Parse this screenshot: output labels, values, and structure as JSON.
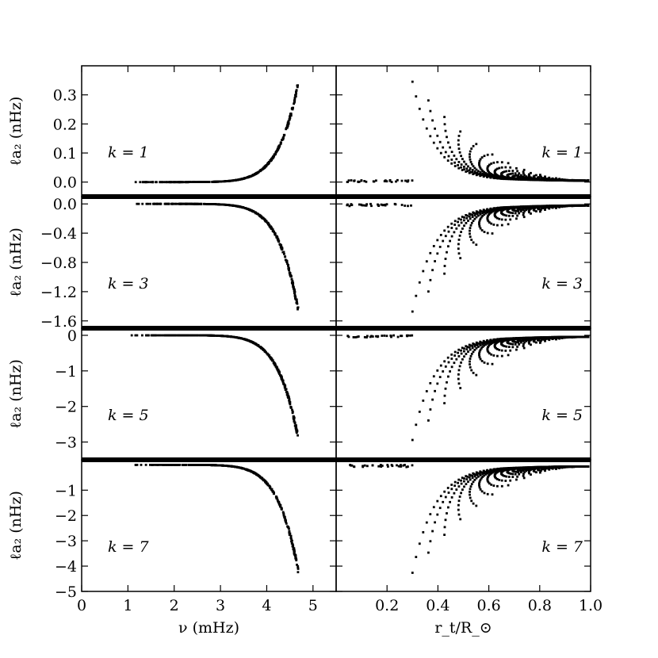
{
  "chart_data": {
    "type": "scatter",
    "layout": "4x2 grid, shared x-axes per column",
    "xlabel_left": "ν (mHz)",
    "xlabel_right": "r_t/R_⊙",
    "ylabel": "ℓa₂ (nHz)",
    "xlim_left": [
      0,
      5.5
    ],
    "xticks_left": [
      0,
      1,
      2,
      3,
      4,
      5
    ],
    "xlim_right": [
      0,
      1.0
    ],
    "xticks_right": [
      0.2,
      0.4,
      0.6,
      0.8,
      1.0
    ],
    "rows": [
      {
        "label": "k = 1",
        "ylim": [
          -0.05,
          0.4
        ],
        "yticks": [
          0.0,
          0.1,
          0.2,
          0.3
        ],
        "ytick_labels": [
          "0.0",
          "0.1",
          "0.2",
          "0.3"
        ],
        "sign": 1,
        "amp": 0.34,
        "ymax": 0.4
      },
      {
        "label": "k = 3",
        "ylim": [
          -1.7,
          0.1
        ],
        "yticks": [
          0.0,
          -0.4,
          -0.8,
          -1.2,
          -1.6
        ],
        "ytick_labels": [
          "0.0",
          "−0.4",
          "−0.8",
          "−1.2",
          "−1.6"
        ],
        "sign": -1,
        "amp": 1.45,
        "ymax": 1.7
      },
      {
        "label": "k = 5",
        "ylim": [
          -3.5,
          0.2
        ],
        "yticks": [
          0,
          -1,
          -2,
          -3
        ],
        "ytick_labels": [
          "0",
          "−1",
          "−2",
          "−3"
        ],
        "sign": -1,
        "amp": 2.9,
        "ymax": 3.35
      },
      {
        "label": "k = 7",
        "ylim": [
          -5,
          0.2
        ],
        "yticks": [
          -1,
          -2,
          -3,
          -4,
          -5
        ],
        "ytick_labels": [
          "−1",
          "−2",
          "−3",
          "−4",
          "−5"
        ],
        "sign": -1,
        "amp": 4.2,
        "ymax": 4.8
      }
    ]
  }
}
